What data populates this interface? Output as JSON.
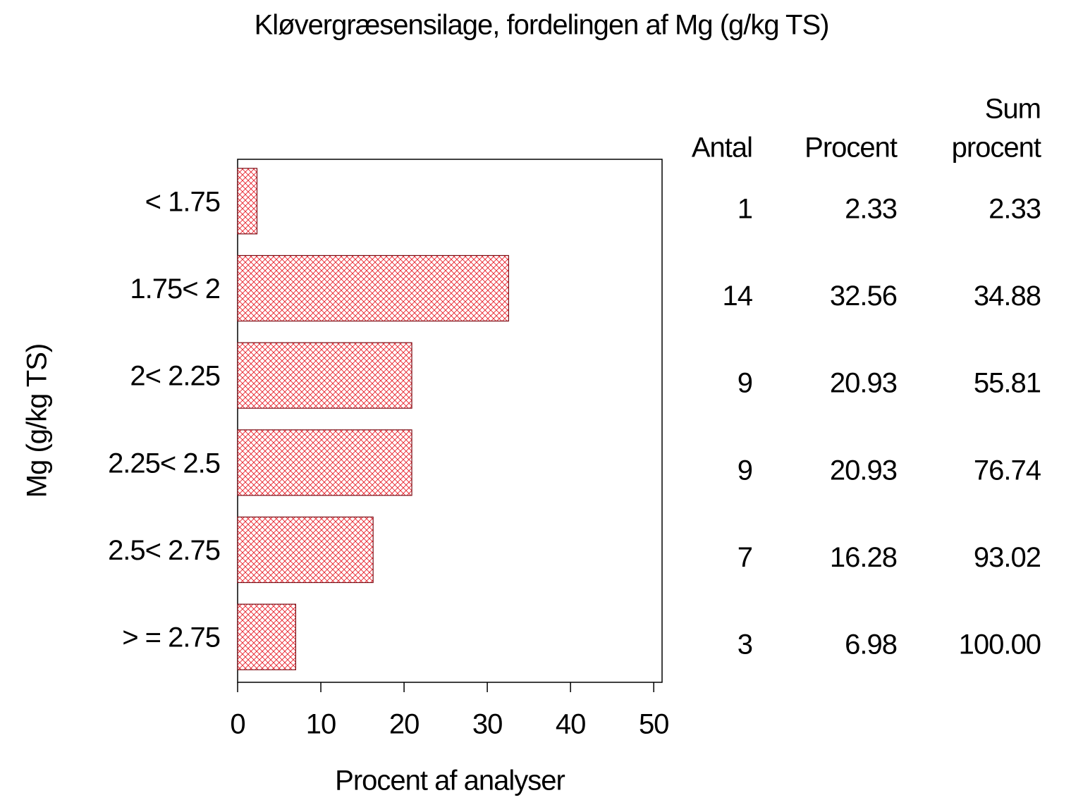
{
  "chart_data": {
    "type": "bar",
    "orientation": "horizontal",
    "title": "Kløvergræsensilage,  fordelingen  af  Mg  (g/kg  TS)",
    "y_label": "Mg  (g/kg  TS)",
    "x_label": "Procent  af  analyser",
    "categories": [
      "< 1.75",
      "1.75< 2",
      "2< 2.25",
      "2.25< 2.5",
      "2.5< 2.75",
      "> = 2.75"
    ],
    "values": [
      2.33,
      32.56,
      20.93,
      20.93,
      16.28,
      6.98
    ],
    "color": "#e8202a",
    "edge_color": "#7a0a12",
    "xlim": [
      0,
      51
    ],
    "xticks": [
      0,
      10,
      20,
      30,
      40,
      50
    ],
    "table": {
      "headers": [
        [
          "Antal"
        ],
        [
          "Procent"
        ],
        [
          "Sum",
          "procent"
        ]
      ],
      "antal": [
        1,
        14,
        9,
        9,
        7,
        3
      ],
      "sum_procent": [
        "2.33",
        "34.88",
        "55.81",
        "76.74",
        "93.02",
        "100.00"
      ]
    }
  }
}
